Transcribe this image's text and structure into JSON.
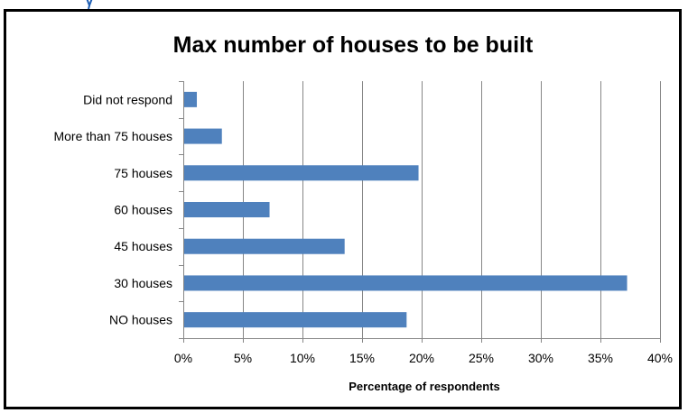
{
  "colors": {
    "bar": "#4f81bd",
    "grid": "#868686",
    "axis": "#868686",
    "frame": "#000000",
    "fragment": "#1f5fb4"
  },
  "chart_data": {
    "type": "bar",
    "orientation": "horizontal",
    "title": "Max number of houses to be built",
    "xlabel": "Percentage of respondents",
    "ylabel": "",
    "categories": [
      "Did not respond",
      "More than 75 houses",
      "75 houses",
      "60 houses",
      "45 houses",
      "30 houses",
      "NO houses"
    ],
    "values": [
      1.1,
      3.2,
      19.7,
      7.2,
      13.5,
      37.2,
      18.7
    ],
    "xlim": [
      0,
      40
    ],
    "xticks": [
      0,
      5,
      10,
      15,
      20,
      25,
      30,
      35,
      40
    ],
    "xtick_labels": [
      "0%",
      "5%",
      "10%",
      "15%",
      "20%",
      "25%",
      "30%",
      "35%",
      "40%"
    ],
    "grid": "vertical",
    "legend": "none"
  }
}
